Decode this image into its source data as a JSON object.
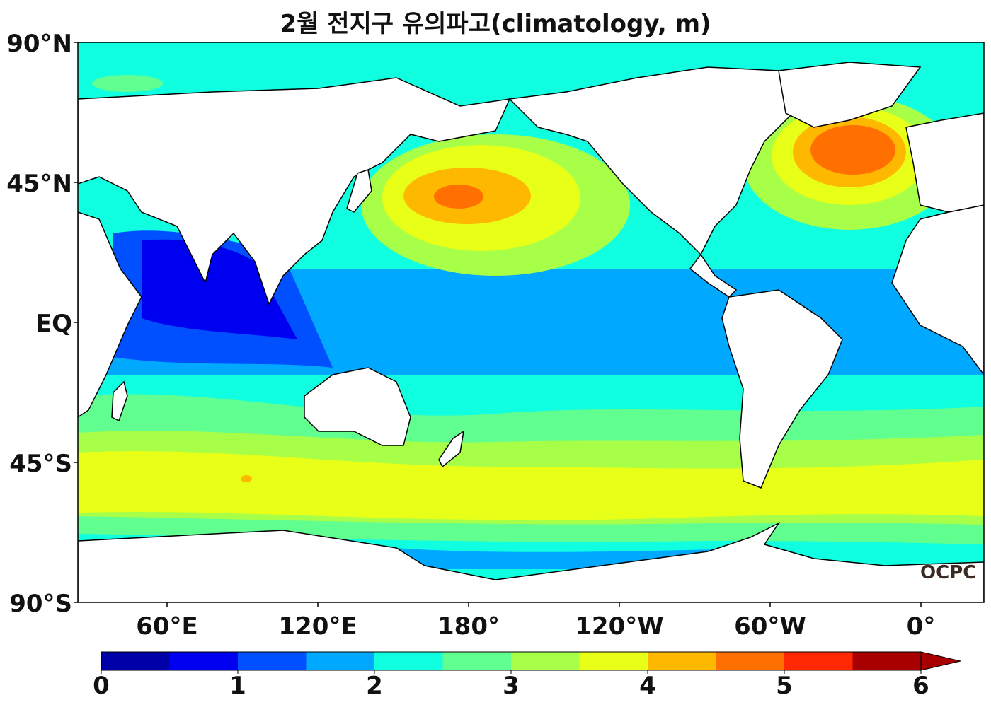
{
  "title": "2월 전지구 유의파고(climatology, m)",
  "y_ticks": [
    "90°N",
    "45°N",
    "EQ",
    "45°S",
    "90°S"
  ],
  "x_ticks": [
    "60°E",
    "120°E",
    "180°",
    "120°W",
    "60°W",
    "0°"
  ],
  "colorbar": {
    "tick_labels": [
      "0",
      "1",
      "2",
      "3",
      "4",
      "5",
      "6"
    ],
    "levels": [
      0,
      0.5,
      1,
      1.5,
      2,
      2.5,
      3,
      3.5,
      4,
      4.5,
      5,
      5.5,
      6
    ],
    "colors": [
      "#0000a8",
      "#0000f0",
      "#0050ff",
      "#00a8ff",
      "#10ffe0",
      "#60ff90",
      "#a8ff48",
      "#e8ff18",
      "#ffb800",
      "#ff7000",
      "#ff2800",
      "#a80000"
    ],
    "extend": "max"
  },
  "colors": {
    "land": "#ffffff",
    "coastline": "#000000",
    "ocean_default": "#10ffe0"
  },
  "watermark": "OCPC"
}
